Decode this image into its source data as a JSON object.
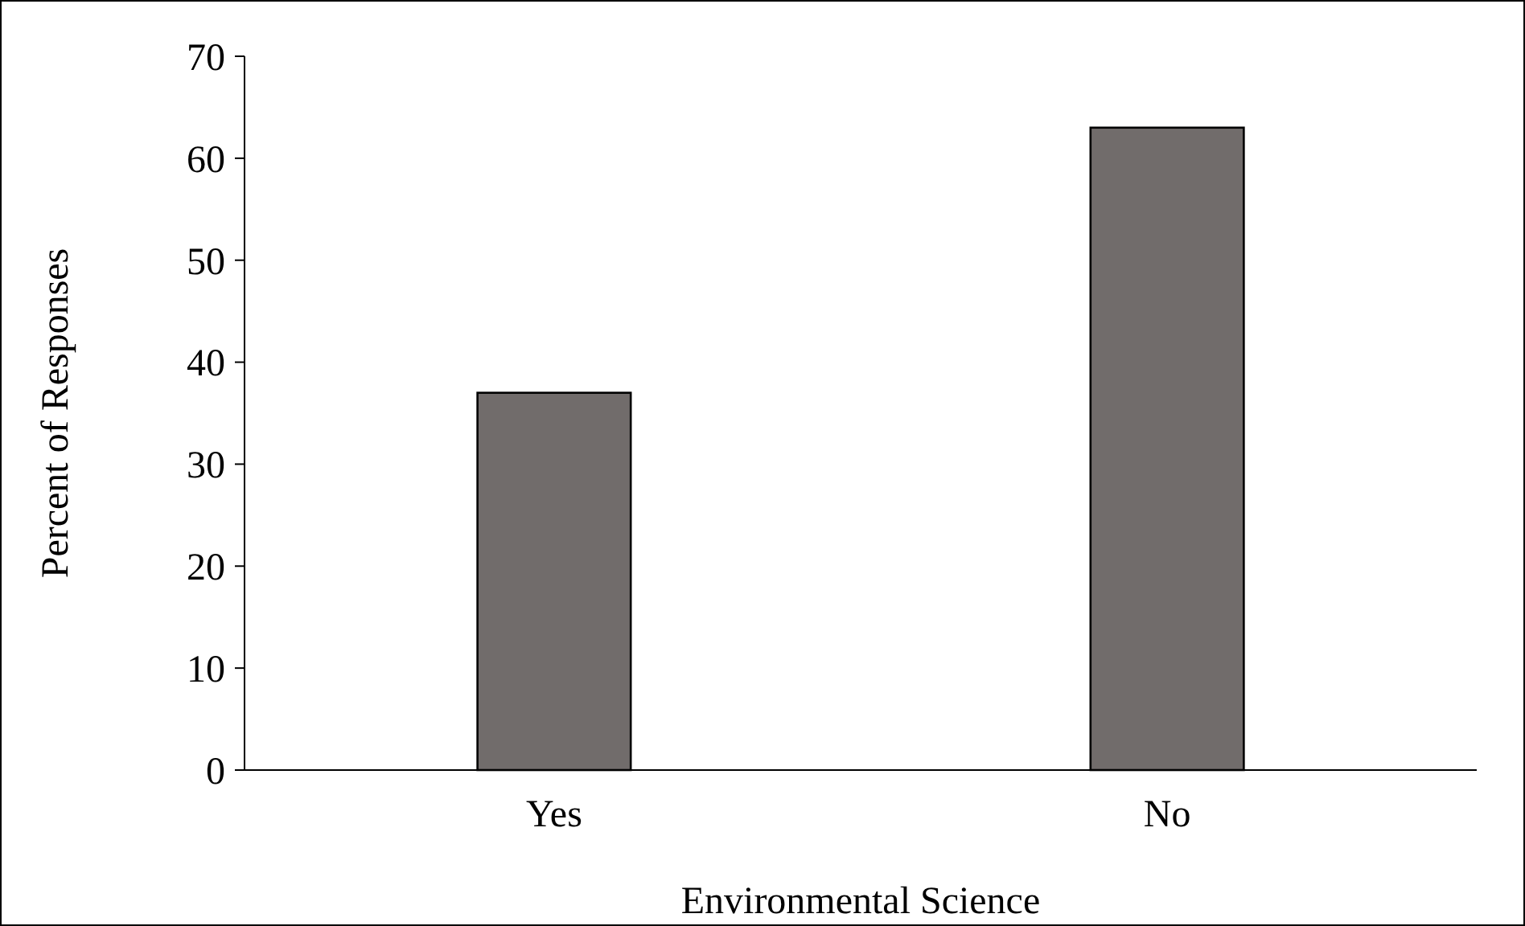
{
  "chart_data": {
    "type": "bar",
    "xlabel": "Environmental Science",
    "ylabel": "Percent of Responses",
    "categories": [
      "Yes",
      "No"
    ],
    "values": [
      37,
      63
    ],
    "color": "#716c6b",
    "ylim": [
      0,
      70
    ],
    "yticks": [
      0,
      10,
      20,
      30,
      40,
      50,
      60,
      70
    ],
    "grid": false
  }
}
